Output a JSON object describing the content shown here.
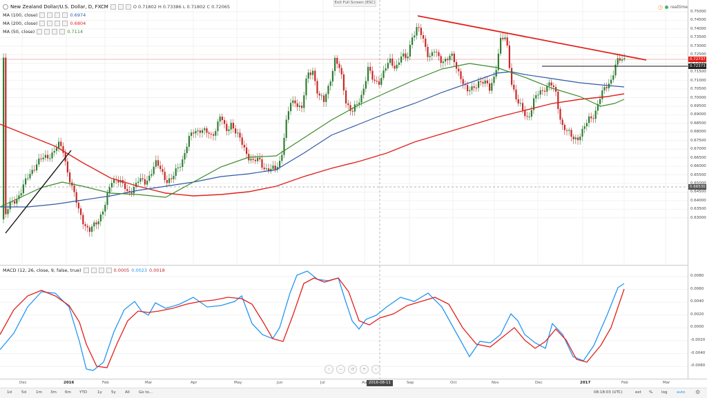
{
  "header": {
    "title": "New Zealand Dollar/U.S. Dollar, D, FXCM",
    "ohlc": "O 0.71802 H 0.73386 L 0.71802 C 0.72065",
    "exit_full_screen": "Exit Full Screen (ESC)",
    "realtime": "realtime"
  },
  "indicators": {
    "ma100": {
      "label": "MA (100, close)",
      "value": "0.6974",
      "color": "#2e58a6"
    },
    "ma200": {
      "label": "MA (200, close)",
      "value": "0.6804",
      "color": "#e0201b"
    },
    "ma50": {
      "label": "MA (50, close)",
      "value": "0.7114",
      "color": "#3b8a2a"
    },
    "macd": {
      "label": "MACD (12, 26, close, 9, false, true)",
      "v1": "0.0005",
      "v2": "0.0023",
      "v3": "0.0018"
    }
  },
  "colors": {
    "up": "#2e7d32",
    "down": "#c62828",
    "trendline": "#e0201b",
    "macd_line": "#2196f3",
    "signal_line": "#e0201b"
  },
  "price_axis": {
    "ticks": [
      "0.75000",
      "0.74500",
      "0.74000",
      "0.73500",
      "0.73000",
      "0.72500",
      "0.72000",
      "0.71500",
      "0.71000",
      "0.70500",
      "0.70000",
      "0.69500",
      "0.69000",
      "0.68500",
      "0.68000",
      "0.67500",
      "0.67000",
      "0.66500",
      "0.66000",
      "0.65500",
      "0.65000",
      "0.64500",
      "0.64000",
      "0.63500",
      "0.63000"
    ],
    "current_price": "0.72737",
    "level_marker": "0.72373",
    "crosshair_price": "0.66530"
  },
  "macd_axis": {
    "ticks": [
      "0.0080",
      "0.0060",
      "0.0040",
      "0.0020",
      "0.0000",
      "-0.0020",
      "-0.0040",
      "-0.0060"
    ]
  },
  "time_axis": {
    "labels": [
      "Dec",
      "2016",
      "Feb",
      "Mar",
      "Apr",
      "May",
      "Jun",
      "Jul",
      "Aug",
      "Sep",
      "Oct",
      "Nov",
      "Dec",
      "2017",
      "Feb",
      "Mar"
    ],
    "crosshair_date": "2016-08-11"
  },
  "bottom_bar": {
    "ranges": [
      "1d",
      "5d",
      "1m",
      "3m",
      "6m",
      "YTD",
      "1y",
      "5y",
      "All",
      "Go to..."
    ],
    "time": "08:18:03 (UTC)",
    "options": [
      "ext",
      "%",
      "log",
      "auto"
    ]
  }
}
